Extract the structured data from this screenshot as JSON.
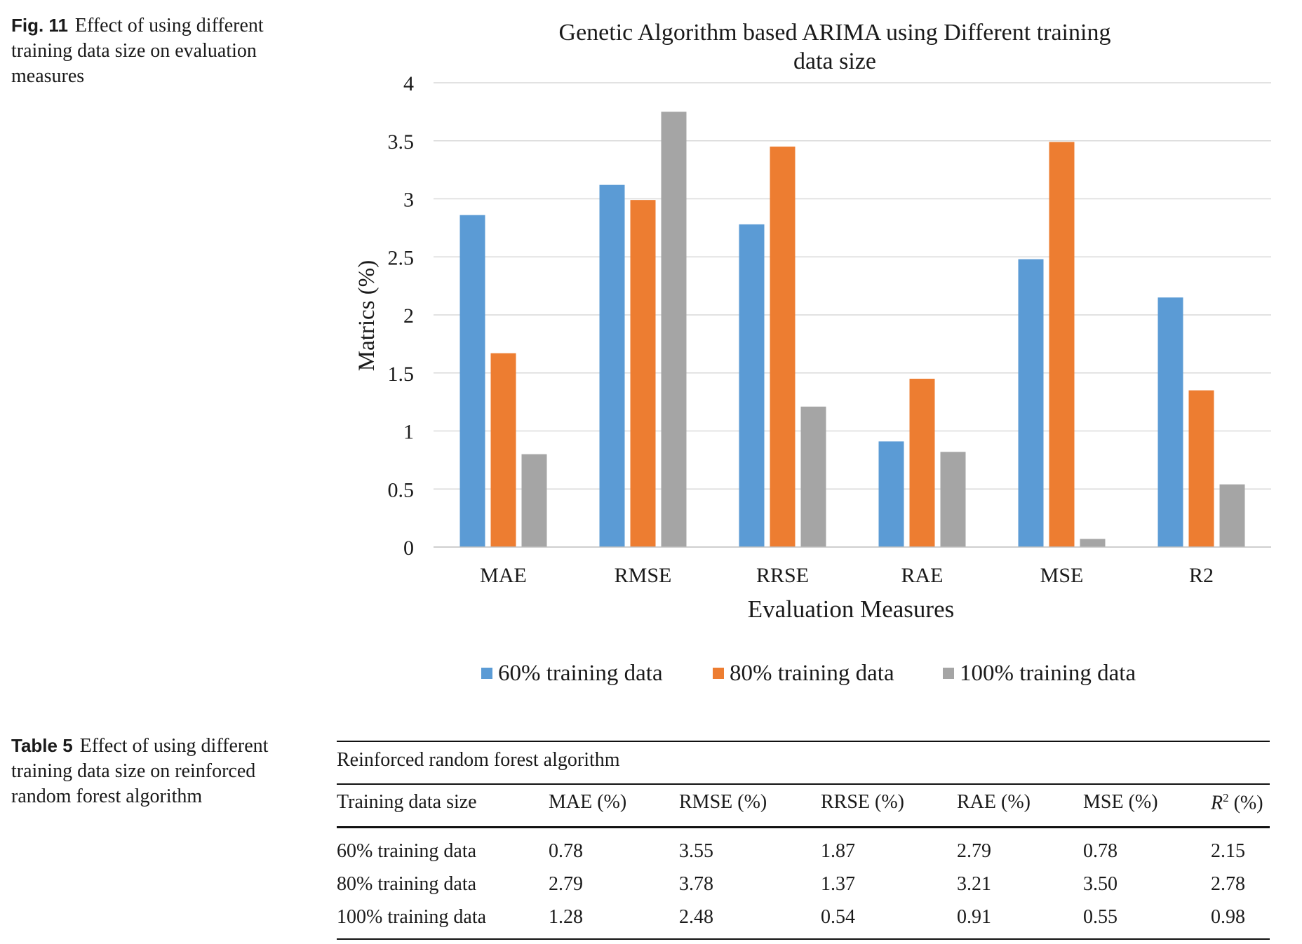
{
  "figure": {
    "label": "Fig. 11",
    "caption": "Effect of using different training data size on evaluation measures"
  },
  "chart_data": {
    "type": "bar",
    "title": "Genetic Algorithm based ARIMA using Different training data size",
    "title_lines": [
      "Genetic Algorithm based ARIMA using Different training",
      "data size"
    ],
    "xlabel": "Evaluation Measures",
    "ylabel": "Matrics (%)",
    "categories": [
      "MAE",
      "RMSE",
      "RRSE",
      "RAE",
      "MSE",
      "R2"
    ],
    "ylim": [
      0,
      4
    ],
    "yticks": [
      "0",
      "0.5",
      "1",
      "1.5",
      "2",
      "2.5",
      "3",
      "3.5",
      "4"
    ],
    "grid": true,
    "legend_position": "bottom",
    "series": [
      {
        "name": "60% training data",
        "color": "#5b9bd5",
        "values": [
          2.86,
          3.12,
          2.78,
          0.91,
          2.48,
          2.15
        ]
      },
      {
        "name": "80% training data",
        "color": "#ed7d31",
        "values": [
          1.67,
          2.99,
          3.45,
          1.45,
          3.49,
          1.35
        ]
      },
      {
        "name": "100% training data",
        "color": "#a5a5a5",
        "values": [
          0.8,
          3.75,
          1.21,
          0.82,
          0.07,
          0.54
        ]
      }
    ]
  },
  "table": {
    "label": "Table 5",
    "caption": "Effect of using different training data size on reinforced random forest algorithm",
    "group_header": "Reinforced random forest algorithm",
    "columns": [
      "Training data size",
      "MAE (%)",
      "RMSE (%)",
      "RRSE (%)",
      "RAE (%)",
      "MSE (%)",
      "(%)"
    ],
    "r2_symbol": "R",
    "r2_superscript": "2",
    "rows": [
      [
        "60% training data",
        "0.78",
        "3.55",
        "1.87",
        "2.79",
        "0.78",
        "2.15"
      ],
      [
        "80% training data",
        "2.79",
        "3.78",
        "1.37",
        "3.21",
        "3.50",
        "2.78"
      ],
      [
        "100% training data",
        "1.28",
        "2.48",
        "0.54",
        "0.91",
        "0.55",
        "0.98"
      ]
    ]
  }
}
